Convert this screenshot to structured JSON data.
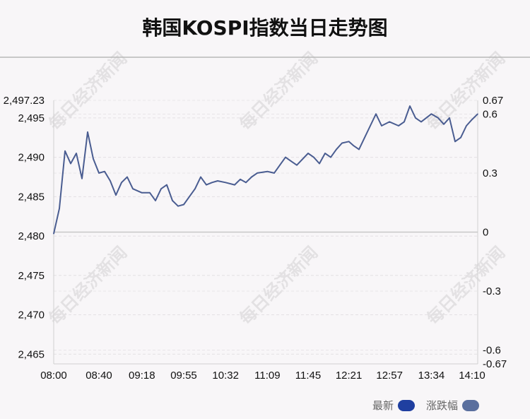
{
  "title": "韩国KOSPI指数当日走势图",
  "watermark": "每日经济新闻",
  "legend": {
    "latest": "最新",
    "change": "涨跌幅"
  },
  "colors": {
    "latest": "#1f3fa0",
    "change": "#5a6f9e",
    "line": "#4a5d91"
  },
  "chart_data": {
    "type": "line",
    "title": "韩国KOSPI指数当日走势图",
    "x_ticks": [
      "08:00",
      "08:40",
      "09:18",
      "09:55",
      "10:32",
      "11:09",
      "11:45",
      "12:21",
      "12:57",
      "13:34",
      "14:10"
    ],
    "y_left_ticks": [
      "2,497.23",
      "2,495",
      "2,490",
      "2,485",
      "2,480",
      "2,475",
      "2,470",
      "2,465"
    ],
    "y_left_tick_values": [
      2497.23,
      2495,
      2490,
      2485,
      2480,
      2475,
      2470,
      2465
    ],
    "y_right_ticks": [
      "0.67",
      "0.6",
      "0.3",
      "0",
      "-0.3",
      "-0.6",
      "-0.67"
    ],
    "y_right_tick_values": [
      0.67,
      0.6,
      0.3,
      0,
      -0.3,
      -0.6,
      -0.67
    ],
    "ylim": [
      2463.77,
      2497.23
    ],
    "y2lim": [
      -0.67,
      0.67
    ],
    "series": [
      {
        "name": "最新",
        "x": [
          "08:00",
          "08:05",
          "08:10",
          "08:15",
          "08:20",
          "08:25",
          "08:30",
          "08:35",
          "08:40",
          "08:45",
          "08:50",
          "08:55",
          "09:00",
          "09:05",
          "09:10",
          "09:18",
          "09:25",
          "09:30",
          "09:35",
          "09:40",
          "09:45",
          "09:50",
          "09:55",
          "10:00",
          "10:05",
          "10:10",
          "10:15",
          "10:20",
          "10:25",
          "10:32",
          "10:40",
          "10:45",
          "10:50",
          "10:55",
          "11:00",
          "11:09",
          "11:15",
          "11:20",
          "11:25",
          "11:30",
          "11:35",
          "11:45",
          "11:50",
          "11:55",
          "12:00",
          "12:05",
          "12:10",
          "12:15",
          "12:21",
          "12:25",
          "12:30",
          "12:35",
          "12:40",
          "12:45",
          "12:50",
          "12:57",
          "13:05",
          "13:10",
          "13:15",
          "13:20",
          "13:25",
          "13:34",
          "13:40",
          "13:45",
          "13:50",
          "13:55",
          "14:00",
          "14:05",
          "14:10",
          "14:15"
        ],
        "values": [
          2480.3,
          2483.5,
          2490.8,
          2489.2,
          2490.5,
          2487.3,
          2493.2,
          2489.8,
          2488.0,
          2488.2,
          2487.0,
          2485.2,
          2486.8,
          2487.5,
          2486.0,
          2485.5,
          2485.5,
          2484.5,
          2486.0,
          2486.5,
          2484.5,
          2483.8,
          2484.0,
          2485.0,
          2486.0,
          2487.5,
          2486.5,
          2486.8,
          2487.0,
          2486.8,
          2486.5,
          2487.2,
          2486.8,
          2487.5,
          2488.0,
          2488.2,
          2488.0,
          2489.0,
          2490.0,
          2489.5,
          2489.0,
          2490.5,
          2490.0,
          2489.2,
          2490.5,
          2490.0,
          2491.0,
          2491.8,
          2492.0,
          2491.5,
          2491.0,
          2492.5,
          2494.0,
          2495.5,
          2494.0,
          2494.5,
          2494.0,
          2494.5,
          2496.5,
          2495.0,
          2494.5,
          2495.5,
          2495.0,
          2494.2,
          2495.0,
          2492.0,
          2492.5,
          2494.0,
          2494.8,
          2495.5
        ]
      }
    ]
  }
}
